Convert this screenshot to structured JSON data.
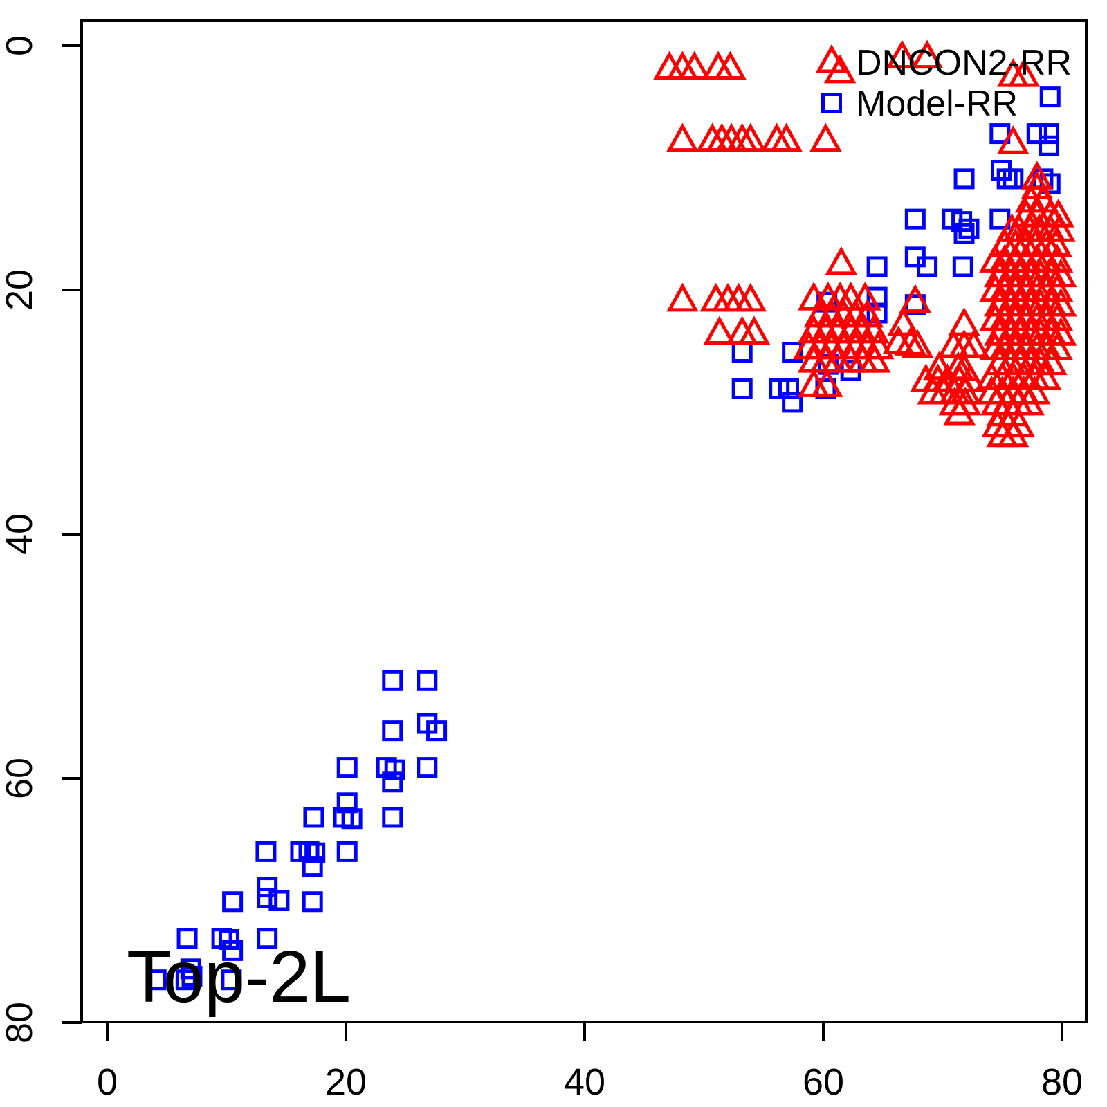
{
  "colors": {
    "background": "#ffffff",
    "axis": "#000000",
    "dncon2": "#ff0000",
    "model": "#0000ff",
    "text": "#000000"
  },
  "corner_label": "Top-2L",
  "legend": {
    "position": "top-right",
    "entries": [
      {
        "label": "DNCON2-RR",
        "marker": "triangle",
        "color": "#ff0000"
      },
      {
        "label": "Model-RR",
        "marker": "square",
        "color": "#0000ff"
      }
    ]
  },
  "chart_data": {
    "type": "scatter",
    "title": "",
    "xlabel": "",
    "ylabel": "",
    "xlim": [
      0,
      80
    ],
    "ylim": [
      0,
      80
    ],
    "y_axis_inverted": true,
    "grid": false,
    "x_ticks": [
      0,
      20,
      40,
      60,
      80
    ],
    "y_ticks": [
      0,
      20,
      40,
      60,
      80
    ],
    "x_tick_labels": [
      "0",
      "20",
      "40",
      "60",
      "80"
    ],
    "y_tick_labels": [
      "0",
      "20",
      "40",
      "60",
      "80"
    ],
    "series": [
      {
        "name": "DNCON2-RR",
        "marker": "triangle",
        "color": "#ff0000",
        "points": [
          [
            47.1,
            1.9
          ],
          [
            48.2,
            1.9
          ],
          [
            49.2,
            1.9
          ],
          [
            51.2,
            1.9
          ],
          [
            52.2,
            1.9
          ],
          [
            61.4,
            2.2
          ],
          [
            66.6,
            1.0
          ],
          [
            68.7,
            1.0
          ],
          [
            75.9,
            2.5
          ],
          [
            76.8,
            2.5
          ],
          [
            48.2,
            7.8
          ],
          [
            50.7,
            7.8
          ],
          [
            51.5,
            7.8
          ],
          [
            52.3,
            7.8
          ],
          [
            53.2,
            7.8
          ],
          [
            53.9,
            7.8
          ],
          [
            56.1,
            7.8
          ],
          [
            56.9,
            7.8
          ],
          [
            60.2,
            7.8
          ],
          [
            75.9,
            8.0
          ],
          [
            61.5,
            17.9
          ],
          [
            48.2,
            20.9
          ],
          [
            51.0,
            20.9
          ],
          [
            52.0,
            20.9
          ],
          [
            52.9,
            20.9
          ],
          [
            53.9,
            20.9
          ],
          [
            51.3,
            23.6
          ],
          [
            53.2,
            23.6
          ],
          [
            54.2,
            23.6
          ],
          [
            59.2,
            27.9
          ],
          [
            60.3,
            27.9
          ],
          [
            59.2,
            20.8
          ],
          [
            60.4,
            20.8
          ],
          [
            61.4,
            20.8
          ],
          [
            62.3,
            20.8
          ],
          [
            63.5,
            20.8
          ],
          [
            59.7,
            22.2
          ],
          [
            60.7,
            22.2
          ],
          [
            61.7,
            22.2
          ],
          [
            62.7,
            22.2
          ],
          [
            63.7,
            22.2
          ],
          [
            59.2,
            23.5
          ],
          [
            60.2,
            23.5
          ],
          [
            61.2,
            23.5
          ],
          [
            62.3,
            23.5
          ],
          [
            63.2,
            23.5
          ],
          [
            64.2,
            23.5
          ],
          [
            58.8,
            24.8
          ],
          [
            59.7,
            24.8
          ],
          [
            60.7,
            24.8
          ],
          [
            61.7,
            24.8
          ],
          [
            62.7,
            24.8
          ],
          [
            63.7,
            24.8
          ],
          [
            64.6,
            24.8
          ],
          [
            59.2,
            25.9
          ],
          [
            60.2,
            25.9
          ],
          [
            61.2,
            25.9
          ],
          [
            62.3,
            25.9
          ],
          [
            63.3,
            25.9
          ],
          [
            64.3,
            25.9
          ],
          [
            67.7,
            21.0
          ],
          [
            66.7,
            22.9
          ],
          [
            66.3,
            24.4
          ],
          [
            67.3,
            24.5
          ],
          [
            67.9,
            24.7
          ],
          [
            71.8,
            22.9
          ],
          [
            70.9,
            24.7
          ],
          [
            71.8,
            24.7
          ],
          [
            72.6,
            24.7
          ],
          [
            69.7,
            26.5
          ],
          [
            71.3,
            26.5
          ],
          [
            71.8,
            26.6
          ],
          [
            68.6,
            27.5
          ],
          [
            69.6,
            27.5
          ],
          [
            70.4,
            27.5
          ],
          [
            71.4,
            27.5
          ],
          [
            72.3,
            27.5
          ],
          [
            69.2,
            28.5
          ],
          [
            70.1,
            28.5
          ],
          [
            71.0,
            28.5
          ],
          [
            71.9,
            28.5
          ],
          [
            71.0,
            29.4
          ],
          [
            71.9,
            29.4
          ],
          [
            71.4,
            30.2
          ],
          [
            77.9,
            10.9
          ],
          [
            77.9,
            11.7
          ],
          [
            77.4,
            12.8
          ],
          [
            78.4,
            12.8
          ],
          [
            77.0,
            14.0
          ],
          [
            77.9,
            14.0
          ],
          [
            79.0,
            14.0
          ],
          [
            79.7,
            14.0
          ],
          [
            75.8,
            15.2
          ],
          [
            76.4,
            15.2
          ],
          [
            77.3,
            15.2
          ],
          [
            78.1,
            15.2
          ],
          [
            79.0,
            15.2
          ],
          [
            79.8,
            15.2
          ],
          [
            75.2,
            16.4
          ],
          [
            76.1,
            16.4
          ],
          [
            76.9,
            16.4
          ],
          [
            77.8,
            16.4
          ],
          [
            78.7,
            16.4
          ],
          [
            79.5,
            16.4
          ],
          [
            74.4,
            17.7
          ],
          [
            75.2,
            17.7
          ],
          [
            76.1,
            17.7
          ],
          [
            77.0,
            17.7
          ],
          [
            77.9,
            17.7
          ],
          [
            78.7,
            17.7
          ],
          [
            79.6,
            17.7
          ],
          [
            74.8,
            18.9
          ],
          [
            75.7,
            18.9
          ],
          [
            76.5,
            18.9
          ],
          [
            77.4,
            18.9
          ],
          [
            78.2,
            18.9
          ],
          [
            79.1,
            18.9
          ],
          [
            79.9,
            18.9
          ],
          [
            74.4,
            20.1
          ],
          [
            75.2,
            20.1
          ],
          [
            76.1,
            20.1
          ],
          [
            77.0,
            20.1
          ],
          [
            77.9,
            20.1
          ],
          [
            78.7,
            20.1
          ],
          [
            79.6,
            20.1
          ],
          [
            74.8,
            21.3
          ],
          [
            75.7,
            21.3
          ],
          [
            76.5,
            21.3
          ],
          [
            77.4,
            21.3
          ],
          [
            78.2,
            21.3
          ],
          [
            79.1,
            21.3
          ],
          [
            79.9,
            21.3
          ],
          [
            74.4,
            22.5
          ],
          [
            75.2,
            22.5
          ],
          [
            76.1,
            22.5
          ],
          [
            77.0,
            22.5
          ],
          [
            77.9,
            22.5
          ],
          [
            78.7,
            22.5
          ],
          [
            79.6,
            22.5
          ],
          [
            74.8,
            23.7
          ],
          [
            75.7,
            23.7
          ],
          [
            76.5,
            23.7
          ],
          [
            77.4,
            23.7
          ],
          [
            78.2,
            23.7
          ],
          [
            79.1,
            23.7
          ],
          [
            79.9,
            23.7
          ],
          [
            74.4,
            24.9
          ],
          [
            75.2,
            24.9
          ],
          [
            76.1,
            24.9
          ],
          [
            77.0,
            24.9
          ],
          [
            77.9,
            24.9
          ],
          [
            78.7,
            24.9
          ],
          [
            79.6,
            24.9
          ],
          [
            74.8,
            26.1
          ],
          [
            75.7,
            26.1
          ],
          [
            76.5,
            26.1
          ],
          [
            77.4,
            26.1
          ],
          [
            78.2,
            26.1
          ],
          [
            79.1,
            26.1
          ],
          [
            74.1,
            27.3
          ],
          [
            75.0,
            27.3
          ],
          [
            75.9,
            27.3
          ],
          [
            76.8,
            27.3
          ],
          [
            77.7,
            27.3
          ],
          [
            78.6,
            27.3
          ],
          [
            74.1,
            28.5
          ],
          [
            75.0,
            28.5
          ],
          [
            75.9,
            28.5
          ],
          [
            76.8,
            28.5
          ],
          [
            77.7,
            28.5
          ],
          [
            74.5,
            29.4
          ],
          [
            75.4,
            29.4
          ],
          [
            76.3,
            29.4
          ],
          [
            77.2,
            29.4
          ],
          [
            75.0,
            30.3
          ],
          [
            75.9,
            30.3
          ],
          [
            74.6,
            31.2
          ],
          [
            75.5,
            31.2
          ],
          [
            76.4,
            31.2
          ],
          [
            75.0,
            32.0
          ],
          [
            75.9,
            32.0
          ]
        ]
      },
      {
        "name": "Model-RR",
        "marker": "square",
        "color": "#0000ff",
        "points": [
          [
            79.0,
            4.2
          ],
          [
            74.8,
            7.2
          ],
          [
            77.9,
            7.2
          ],
          [
            78.9,
            7.2
          ],
          [
            78.9,
            8.2
          ],
          [
            71.8,
            10.9
          ],
          [
            74.9,
            10.2
          ],
          [
            75.4,
            10.9
          ],
          [
            75.9,
            10.9
          ],
          [
            78.4,
            10.9
          ],
          [
            79.0,
            11.3
          ],
          [
            67.7,
            14.2
          ],
          [
            70.8,
            14.2
          ],
          [
            71.6,
            14.4
          ],
          [
            72.2,
            15.0
          ],
          [
            74.8,
            14.2
          ],
          [
            71.8,
            15.4
          ],
          [
            64.5,
            18.1
          ],
          [
            67.7,
            17.3
          ],
          [
            68.7,
            18.1
          ],
          [
            71.7,
            18.1
          ],
          [
            60.3,
            21.0
          ],
          [
            64.5,
            20.6
          ],
          [
            64.5,
            21.9
          ],
          [
            67.7,
            21.2
          ],
          [
            53.2,
            25.1
          ],
          [
            57.4,
            25.1
          ],
          [
            60.4,
            26.1
          ],
          [
            62.3,
            26.6
          ],
          [
            53.2,
            28.1
          ],
          [
            56.3,
            28.1
          ],
          [
            57.1,
            28.1
          ],
          [
            60.2,
            28.1
          ],
          [
            57.4,
            29.2
          ],
          [
            23.9,
            52.0
          ],
          [
            26.8,
            52.0
          ],
          [
            23.9,
            56.1
          ],
          [
            26.8,
            55.5
          ],
          [
            27.6,
            56.1
          ],
          [
            20.1,
            59.1
          ],
          [
            23.4,
            59.1
          ],
          [
            24.1,
            59.3
          ],
          [
            26.8,
            59.1
          ],
          [
            23.9,
            60.3
          ],
          [
            20.1,
            62.0
          ],
          [
            17.3,
            63.2
          ],
          [
            19.8,
            63.2
          ],
          [
            20.5,
            63.3
          ],
          [
            23.9,
            63.2
          ],
          [
            13.3,
            66.0
          ],
          [
            16.2,
            66.0
          ],
          [
            16.9,
            66.0
          ],
          [
            17.4,
            66.1
          ],
          [
            20.1,
            66.0
          ],
          [
            17.2,
            67.2
          ],
          [
            13.4,
            68.9
          ],
          [
            13.4,
            69.8
          ],
          [
            14.4,
            70.0
          ],
          [
            10.5,
            70.1
          ],
          [
            17.2,
            70.1
          ],
          [
            6.7,
            73.1
          ],
          [
            9.6,
            73.1
          ],
          [
            10.2,
            73.2
          ],
          [
            10.5,
            74.1
          ],
          [
            13.4,
            73.1
          ],
          [
            4.1,
            76.5
          ],
          [
            6.6,
            76.5
          ],
          [
            7.1,
            76.2
          ],
          [
            7.0,
            75.6
          ],
          [
            10.4,
            76.5
          ]
        ]
      }
    ],
    "annotations": [
      {
        "text": "Top-2L",
        "position": "bottom-left"
      }
    ]
  }
}
